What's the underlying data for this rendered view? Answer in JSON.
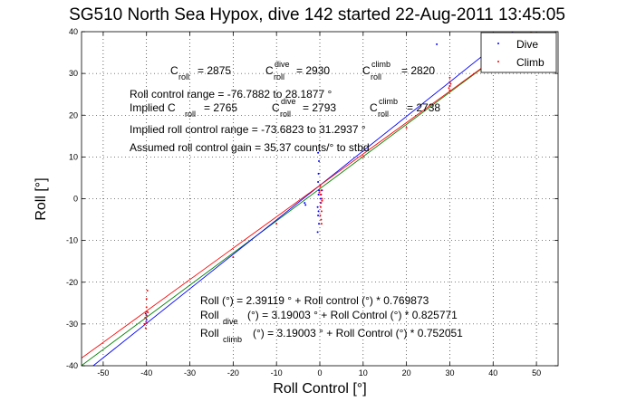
{
  "colors": {
    "dive": "#0000ff",
    "climb": "#ff0000",
    "fit_all": "#008000",
    "axes": "#000000"
  },
  "chart_data": {
    "type": "scatter",
    "title": "SG510 North Sea Hypox, dive 142 started 22-Aug-2011 13:45:05",
    "xlabel": "Roll Control [°]",
    "ylabel": "Roll [°]",
    "xlim": [
      -55,
      55
    ],
    "ylim": [
      -40,
      40
    ],
    "xticks": [
      -50,
      -40,
      -30,
      -20,
      -10,
      0,
      10,
      20,
      30,
      40,
      50
    ],
    "yticks": [
      -40,
      -30,
      -20,
      -10,
      0,
      10,
      20,
      30,
      40
    ],
    "grid": true,
    "legend_position": "top-right",
    "series": [
      {
        "name": "Dive",
        "color": "#0000ff",
        "points": [
          [
            -40,
            -28
          ],
          [
            -40,
            -29
          ],
          [
            -40.2,
            -27.5
          ],
          [
            -3.5,
            -1
          ],
          [
            -3.3,
            -1.5
          ],
          [
            -0.5,
            -2
          ],
          [
            -0.3,
            -3
          ],
          [
            -0.4,
            -4
          ],
          [
            -0.2,
            -6
          ],
          [
            -0.5,
            -8
          ],
          [
            -0.3,
            1
          ],
          [
            -0.2,
            2
          ],
          [
            -0.4,
            4
          ],
          [
            -0.3,
            6
          ],
          [
            -0.2,
            9
          ],
          [
            -0.4,
            11
          ],
          [
            0.2,
            0
          ],
          [
            0.3,
            1
          ],
          [
            0.5,
            2
          ],
          [
            0.2,
            -1
          ],
          [
            30,
            28
          ],
          [
            30,
            27
          ],
          [
            27,
            37
          ]
        ]
      },
      {
        "name": "Climb",
        "color": "#ff0000",
        "points": [
          [
            -40,
            -26
          ],
          [
            -40,
            -27
          ],
          [
            -40,
            -28
          ],
          [
            -40.1,
            -29.5
          ],
          [
            -40.2,
            -31
          ],
          [
            -39.8,
            -22
          ],
          [
            -40,
            -24
          ],
          [
            -40.3,
            -28.5
          ],
          [
            -39.7,
            -27.2
          ],
          [
            -40.4,
            -30
          ],
          [
            0.1,
            3
          ],
          [
            0.3,
            2
          ],
          [
            0.2,
            1
          ],
          [
            0.5,
            0
          ],
          [
            0.3,
            -1
          ],
          [
            0.2,
            -2
          ],
          [
            0.4,
            -3
          ],
          [
            0.1,
            -4
          ],
          [
            0.3,
            -5
          ],
          [
            0.4,
            -6
          ],
          [
            0.5,
            -0.5
          ],
          [
            -0.1,
            1.5
          ],
          [
            30,
            27
          ],
          [
            30,
            28
          ],
          [
            30,
            26
          ],
          [
            30.2,
            27.5
          ],
          [
            29.8,
            26.5
          ],
          [
            30,
            29
          ],
          [
            -20,
            -14
          ],
          [
            -10,
            -6
          ],
          [
            10,
            10
          ],
          [
            20,
            17
          ]
        ]
      }
    ],
    "fit_lines": [
      {
        "label": "Roll",
        "color": "#008000",
        "intercept": 2.39119,
        "slope": 0.769873
      },
      {
        "label": "Roll_dive",
        "color": "#0000ff",
        "intercept": 3.19003,
        "slope": 0.825771
      },
      {
        "label": "Roll_climb",
        "color": "#ff0000",
        "intercept": 3.19003,
        "slope": 0.752051
      }
    ],
    "annotations": {
      "c_roll": "C",
      "c_roll_sub": "roll",
      "c_roll_val": "= 2875",
      "c_dive": "C",
      "c_dive_sup": "dive",
      "c_dive_sub": "roll",
      "c_dive_val": "= 2930",
      "c_climb": "C",
      "c_climb_sup": "climb",
      "c_climb_sub": "roll",
      "c_climb_val": "= 2820",
      "range": "Roll control range = -76.7882 to 28.1877 °",
      "implied": "Implied C",
      "implied_sub": "roll",
      "implied_val": "= 2765",
      "impl_dive": "C",
      "impl_dive_sup": "dive",
      "impl_dive_sub": "roll",
      "impl_dive_val": "= 2793",
      "impl_climb": "C",
      "impl_climb_sup": "climb",
      "impl_climb_sub": "roll",
      "impl_climb_val": "= 2738",
      "implied_range": "Implied roll control range = -73.6823 to 31.2937 °",
      "gain": "Assumed roll control gain = 35.37 counts/° to stbd",
      "eq1": "Roll (°) = 2.39119 ° + Roll control (°) * 0.769873",
      "eq2_a": "Roll",
      "eq2_sub": "dive",
      "eq2_b": "(°) = 3.19003 ° + Roll Control (°) * 0.825771",
      "eq3_a": "Roll",
      "eq3_sub": "climb",
      "eq3_b": "(°) = 3.19003 ° + Roll Control (°) * 0.752051"
    }
  }
}
